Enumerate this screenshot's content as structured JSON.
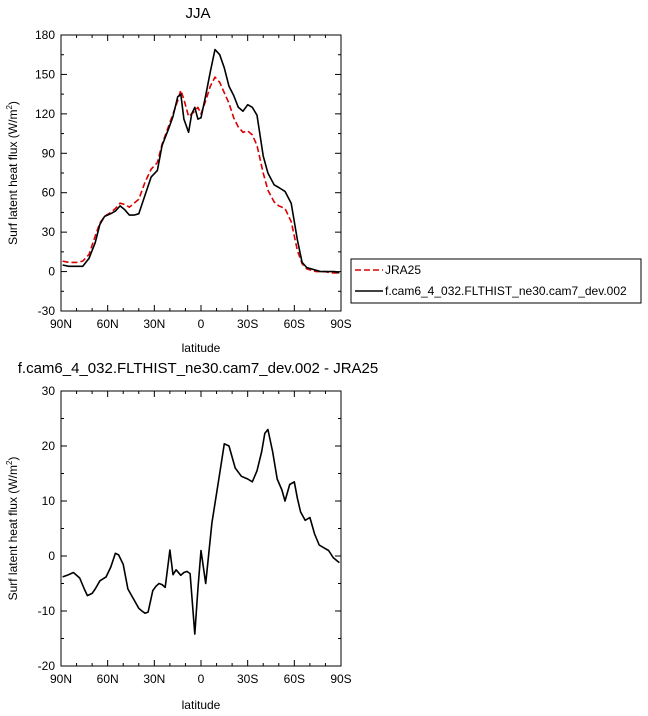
{
  "chart_data": [
    {
      "type": "line",
      "title": "JJA",
      "xlabel": "latitude",
      "ylabel": "Surf latent heat flux (W/m²)",
      "ylabel_unit_prefix": "Surf latent heat flux (W/m",
      "ylabel_unit_sup": "2",
      "ylabel_unit_suffix": ")",
      "xlim": [
        90,
        -90
      ],
      "ylim": [
        -30,
        180
      ],
      "x_ticks": [
        90,
        60,
        30,
        0,
        -30,
        -60,
        -90
      ],
      "x_tick_labels": [
        "90N",
        "60N",
        "30N",
        "0",
        "30S",
        "60S",
        "90S"
      ],
      "y_ticks": [
        -30,
        0,
        30,
        60,
        90,
        120,
        150,
        180
      ],
      "y_tick_labels": [
        "-30",
        "0",
        "30",
        "60",
        "90",
        "120",
        "150",
        "180"
      ],
      "legend_position": "right",
      "series": [
        {
          "name": "JRA25",
          "color": "#dd0000",
          "dash": "dashed",
          "x": [
            89,
            85,
            80,
            76,
            72,
            68,
            65,
            62,
            58,
            55,
            52,
            49,
            46,
            43,
            40,
            36,
            32,
            28,
            25,
            21,
            18,
            15,
            13,
            11,
            8,
            6,
            4,
            2,
            0,
            -3,
            -6,
            -9,
            -12,
            -15,
            -18,
            -21,
            -24,
            -27,
            -30,
            -33,
            -36,
            -40,
            -43,
            -47,
            -50,
            -54,
            -58,
            -62,
            -65,
            -68,
            -71,
            -74,
            -77,
            -80,
            -83,
            -86,
            -89
          ],
          "y": [
            8,
            7,
            7,
            8,
            13,
            27,
            37,
            42,
            45,
            48,
            52,
            51,
            49,
            52,
            55,
            68,
            78,
            83,
            97,
            110,
            120,
            130,
            138,
            131,
            118,
            120,
            122,
            125,
            120,
            130,
            141,
            148,
            144,
            136,
            128,
            117,
            110,
            106,
            107,
            104,
            96,
            75,
            62,
            53,
            50,
            48,
            38,
            16,
            6,
            2,
            1,
            0,
            0,
            0,
            -1,
            -1,
            -1
          ]
        },
        {
          "name": "f.cam6_4_032.FLTHIST_ne30.cam7_dev.002",
          "color": "#000000",
          "dash": "solid",
          "x": [
            89,
            85,
            80,
            76,
            72,
            68,
            65,
            62,
            58,
            55,
            52,
            49,
            46,
            43,
            40,
            36,
            32,
            28,
            25,
            21,
            18,
            15,
            13,
            11,
            8,
            6,
            4,
            2,
            0,
            -3,
            -6,
            -9,
            -12,
            -15,
            -18,
            -21,
            -24,
            -27,
            -30,
            -33,
            -36,
            -40,
            -43,
            -47,
            -50,
            -54,
            -58,
            -62,
            -65,
            -68,
            -71,
            -74,
            -77,
            -80,
            -83,
            -86,
            -89
          ],
          "y": [
            5,
            4,
            4,
            4,
            10,
            22,
            36,
            42,
            44,
            46,
            50,
            47,
            43,
            43,
            44,
            58,
            72,
            77,
            96,
            108,
            118,
            133,
            135,
            116,
            106,
            120,
            125,
            116,
            117,
            134,
            152,
            169,
            165,
            155,
            141,
            134,
            125,
            122,
            127,
            125,
            119,
            88,
            75,
            66,
            64,
            61,
            52,
            24,
            7,
            3,
            2,
            1,
            0,
            0,
            0,
            0,
            -1
          ]
        }
      ]
    },
    {
      "type": "line",
      "title": "f.cam6_4_032.FLTHIST_ne30.cam7_dev.002 - JRA25",
      "xlabel": "latitude",
      "ylabel": "Surf latent heat flux (W/m²)",
      "ylabel_unit_prefix": "Surf latent heat flux (W/m",
      "ylabel_unit_sup": "2",
      "ylabel_unit_suffix": ")",
      "xlim": [
        90,
        -90
      ],
      "ylim": [
        -20,
        30
      ],
      "x_ticks": [
        90,
        60,
        30,
        0,
        -30,
        -60,
        -90
      ],
      "x_tick_labels": [
        "90N",
        "60N",
        "30N",
        "0",
        "30S",
        "60S",
        "90S"
      ],
      "y_ticks": [
        -20,
        -10,
        0,
        10,
        20,
        30
      ],
      "y_tick_labels": [
        "-20",
        "-10",
        "0",
        "10",
        "20",
        "30"
      ],
      "series": [
        {
          "color": "#000000",
          "dash": "solid",
          "x": [
            89,
            86,
            82,
            78,
            75,
            73,
            70,
            68,
            65,
            61,
            58,
            55,
            53,
            50,
            47,
            43,
            40,
            38,
            36,
            34,
            31,
            29,
            27,
            25,
            23,
            20,
            18,
            16,
            13,
            11,
            9,
            7,
            4,
            2,
            0,
            -3,
            -7,
            -12,
            -15,
            -18,
            -22,
            -26,
            -30,
            -33,
            -36,
            -39,
            -41,
            -43,
            -46,
            -49,
            -52,
            -54,
            -57,
            -60,
            -62,
            -64,
            -67,
            -70,
            -73,
            -76,
            -79,
            -82,
            -85,
            -88,
            -89
          ],
          "y": [
            -3.8,
            -3.5,
            -3,
            -4,
            -6,
            -7.2,
            -6.8,
            -6,
            -4.5,
            -3.8,
            -2,
            0.5,
            0.2,
            -1.5,
            -6,
            -8,
            -9.5,
            -10,
            -10.4,
            -10.2,
            -6.3,
            -5.5,
            -5,
            -5.2,
            -5.7,
            1.1,
            -3.4,
            -2.5,
            -3.5,
            -3,
            -2.8,
            -3.2,
            -14.2,
            -6,
            1,
            -5,
            6,
            15,
            20.4,
            20,
            16,
            14.5,
            14,
            13.5,
            15.5,
            19,
            22.3,
            23,
            19,
            14,
            12,
            10,
            13,
            13.5,
            10.5,
            8,
            6.5,
            7,
            4,
            2,
            1.5,
            1,
            -0.3,
            -1,
            -1.2
          ]
        }
      ]
    }
  ]
}
